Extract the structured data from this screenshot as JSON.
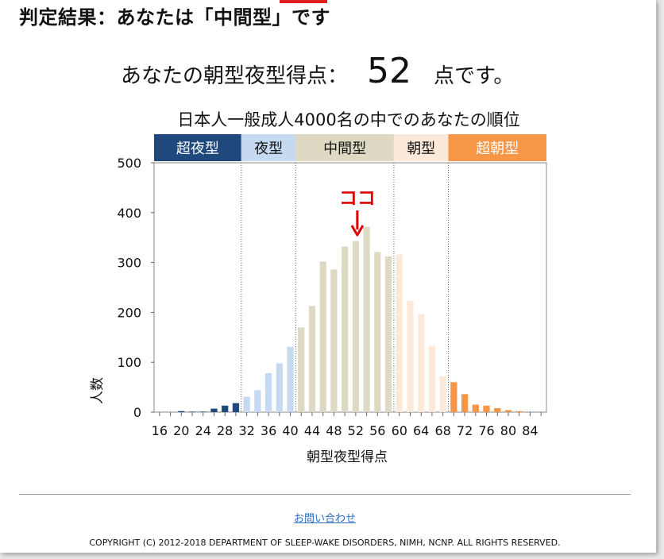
{
  "page": {
    "verdict": "判定結果：あなたは「中間型」です",
    "score_prefix": "あなたの朝型夜型得点：",
    "score_value": "52",
    "score_suffix": "点です。",
    "contact_link": "お問い合わせ",
    "copyright": "COPYRIGHT (C) 2012-2018 DEPARTMENT OF SLEEP-WAKE DISORDERS, NIMH, NCNP. ALL RIGHTS RESERVED."
  },
  "chart_data": {
    "type": "bar",
    "title": "日本人一般成人4000名の中でのあなたの順位",
    "xlabel": "朝型夜型得点",
    "ylabel": "人数",
    "ylim": [
      0,
      500
    ],
    "yticks": [
      0,
      100,
      200,
      300,
      400,
      500
    ],
    "xlim": [
      15,
      87
    ],
    "xticks": [
      16,
      20,
      24,
      28,
      32,
      36,
      40,
      44,
      48,
      52,
      56,
      60,
      64,
      68,
      72,
      76,
      80,
      84
    ],
    "grid": false,
    "x": [
      16,
      18,
      20,
      22,
      24,
      26,
      28,
      30,
      32,
      34,
      36,
      38,
      40,
      42,
      44,
      46,
      48,
      50,
      52,
      54,
      56,
      58,
      60,
      62,
      64,
      66,
      68,
      70,
      72,
      74,
      76,
      78,
      80,
      82,
      84,
      86
    ],
    "values": [
      0,
      0,
      2,
      1,
      1,
      7,
      13,
      18,
      31,
      44,
      78,
      98,
      131,
      170,
      213,
      302,
      286,
      332,
      343,
      371,
      321,
      312,
      316,
      223,
      197,
      133,
      72,
      60,
      36,
      15,
      13,
      8,
      4,
      2,
      0,
      0
    ],
    "bands": [
      {
        "label": "超夜型",
        "from": 15,
        "to": 31,
        "color": "#1f497d",
        "text_color": "#ffffff"
      },
      {
        "label": "夜型",
        "from": 31,
        "to": 41,
        "color": "#c5d9f1",
        "text_color": "#111111"
      },
      {
        "label": "中間型",
        "from": 41,
        "to": 59,
        "color": "#ddd9c3",
        "text_color": "#111111"
      },
      {
        "label": "朝型",
        "from": 59,
        "to": 69,
        "color": "#fde9d9",
        "text_color": "#111111"
      },
      {
        "label": "超朝型",
        "from": 69,
        "to": 87,
        "color": "#f79646",
        "text_color": "#ffffff"
      }
    ],
    "marker": {
      "label": "ココ",
      "x": 52,
      "color": "#e00000"
    }
  }
}
